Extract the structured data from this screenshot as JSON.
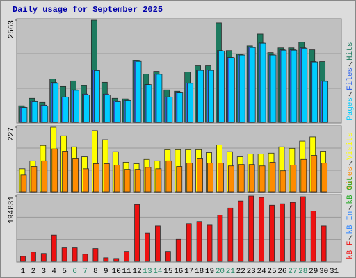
{
  "chart_data": [
    {
      "type": "bar",
      "title": "Daily usage for September 2025",
      "ylim": [
        0,
        2563
      ],
      "yticks": [
        2563
      ],
      "series": [
        {
          "name": "Pages",
          "color": "#00ccff",
          "values": [
            375,
            515,
            410,
            980,
            635,
            805,
            690,
            1300,
            690,
            515,
            550,
            1530,
            945,
            1205,
            635,
            740,
            980,
            1305,
            1305,
            1790,
            1620,
            1690,
            1880,
            1985,
            1690,
            1810,
            1810,
            1860,
            1515,
            1030,
            null
          ]
        },
        {
          "name": "Files",
          "color": "#3366ee",
          "values": [
            380,
            535,
            430,
            1000,
            640,
            815,
            710,
            1315,
            710,
            535,
            555,
            1540,
            950,
            1210,
            640,
            745,
            985,
            1315,
            1315,
            1800,
            1630,
            1695,
            1890,
            1990,
            1695,
            1820,
            1820,
            1870,
            1525,
            1040,
            null
          ]
        },
        {
          "name": "Hits",
          "color": "#1d7a5f",
          "values": [
            415,
            605,
            500,
            1090,
            900,
            1040,
            920,
            2563,
            1005,
            605,
            590,
            1560,
            1210,
            1280,
            815,
            780,
            1265,
            1420,
            1420,
            2495,
            1800,
            1715,
            1920,
            2215,
            1750,
            1870,
            1870,
            2010,
            1820,
            1525,
            null
          ]
        }
      ]
    },
    {
      "type": "bar",
      "ylim": [
        0,
        227
      ],
      "yticks": [
        227
      ],
      "series": [
        {
          "name": "Sites",
          "color": "#ff8c00",
          "values": [
            59,
            89,
            109,
            151,
            143,
            116,
            81,
            99,
            99,
            94,
            79,
            79,
            86,
            81,
            109,
            89,
            101,
            116,
            101,
            101,
            91,
            96,
            96,
            91,
            104,
            74,
            94,
            114,
            128,
            101,
            null
          ]
        },
        {
          "name": "Visits",
          "color": "#ffff00",
          "values": [
            81,
            109,
            163,
            227,
            197,
            158,
            123,
            215,
            183,
            141,
            104,
            99,
            114,
            109,
            148,
            148,
            148,
            148,
            138,
            165,
            141,
            123,
            133,
            133,
            136,
            158,
            153,
            178,
            193,
            143,
            null
          ]
        }
      ]
    },
    {
      "type": "bar",
      "ylim": [
        0,
        194831
      ],
      "yticks": [
        194831
      ],
      "categories": [
        "1",
        "2",
        "3",
        "4",
        "5",
        "6",
        "7",
        "8",
        "9",
        "10",
        "11",
        "12",
        "13",
        "14",
        "15",
        "16",
        "17",
        "18",
        "19",
        "20",
        "21",
        "22",
        "23",
        "24",
        "25",
        "26",
        "27",
        "28",
        "29",
        "30",
        "31"
      ],
      "label_colors": [
        "#000000",
        "#000000",
        "#000000",
        "#000000",
        "#000000",
        "#228866",
        "#228866",
        "#000000",
        "#000000",
        "#000000",
        "#000000",
        "#000000",
        "#228866",
        "#228866",
        "#000000",
        "#000000",
        "#000000",
        "#000000",
        "#000000",
        "#228866",
        "#228866",
        "#000000",
        "#000000",
        "#000000",
        "#000000",
        "#000000",
        "#228866",
        "#228866",
        "#000000",
        "#000000",
        "#000000"
      ],
      "series": [
        {
          "name": "kB F",
          "color": "#ee1111",
          "values": [
            14800,
            27500,
            23300,
            78400,
            40200,
            40200,
            21200,
            38100,
            10600,
            8500,
            29700,
            169400,
            84700,
            105900,
            29700,
            65700,
            112300,
            118600,
            108000,
            137700,
            158900,
            180000,
            194831,
            190600,
            167300,
            171600,
            175800,
            192700,
            150400,
            105900,
            null
          ]
        },
        {
          "name": "kB In",
          "color": "#3388ff",
          "values": [
            null,
            null,
            null,
            null,
            null,
            null,
            null,
            null,
            null,
            null,
            null,
            null,
            null,
            null,
            null,
            null,
            null,
            null,
            null,
            null,
            null,
            null,
            null,
            null,
            null,
            null,
            null,
            null,
            null,
            null,
            null
          ]
        },
        {
          "name": "kB Out",
          "color": "#22aa22",
          "values": [
            null,
            null,
            null,
            null,
            null,
            null,
            null,
            null,
            null,
            null,
            null,
            null,
            null,
            null,
            null,
            null,
            null,
            null,
            null,
            null,
            null,
            null,
            null,
            null,
            null,
            null,
            null,
            null,
            null,
            null,
            null
          ]
        }
      ]
    }
  ]
}
